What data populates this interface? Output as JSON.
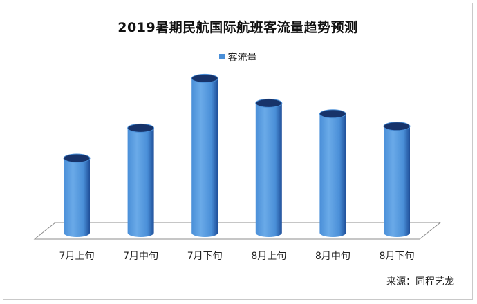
{
  "chart_data": {
    "type": "bar",
    "style": "3d-cylinder",
    "title": "2019暑期民航国际航班客流量趋势预测",
    "categories": [
      "7月上旬",
      "7月中旬",
      "7月下旬",
      "8月上旬",
      "8月中旬",
      "8月下旬"
    ],
    "series": [
      {
        "name": "客流量",
        "values": [
          42,
          59,
          87,
          73,
          67,
          60
        ]
      }
    ],
    "value_axis_shown": false,
    "ylim": [
      0,
      100
    ],
    "grid": false,
    "legend_position": "top",
    "xlabel": "",
    "ylabel": ""
  },
  "colors": {
    "bar_light": "#6aaae8",
    "bar_mid": "#4a8fd8",
    "bar_dark": "#1f4f99",
    "bar_top": "#17336a",
    "legend": "#4a8fd8",
    "floor_stroke": "#8c8c8c"
  },
  "source_note": "来源：同程艺龙"
}
